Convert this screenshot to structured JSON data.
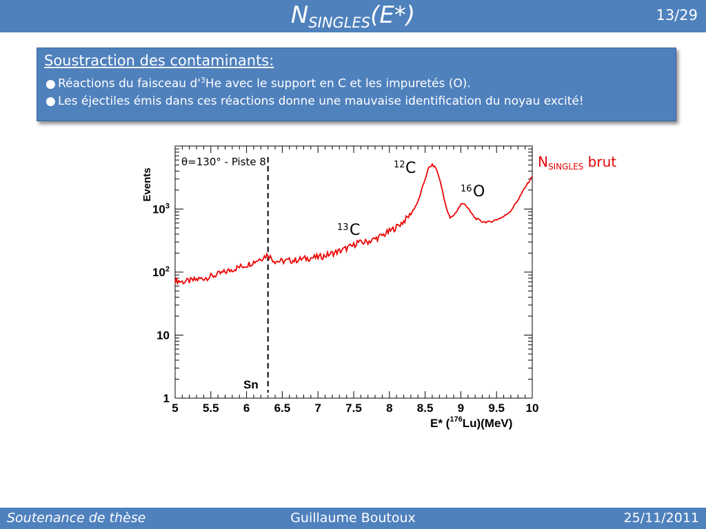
{
  "header": {
    "title_main": "N",
    "title_sub": "SINGLES",
    "title_tail": "(E*)",
    "page": "13/29"
  },
  "box": {
    "heading": "Soustraction des contaminants:",
    "bullet_char": "●",
    "b1_pre": "Réactions du faisceau d'",
    "b1_sup": "3",
    "b1_post": "He avec le support en C et les impuretés (O).",
    "b2": "Les éjectiles émis dans ces réactions donne une mauvaise identification du noyau excité!"
  },
  "chart_data": {
    "type": "line",
    "y_scale": "log",
    "xlim": [
      5,
      10
    ],
    "ylim": [
      1,
      10000
    ],
    "ylabel": "Events",
    "xlabel_pre": "E* (",
    "xlabel_sup": "176",
    "xlabel_post": "Lu)(MeV)",
    "x_ticks": [
      "5",
      "5.5",
      "6",
      "6.5",
      "7",
      "7.5",
      "8",
      "8.5",
      "9",
      "9.5",
      "10"
    ],
    "y_ticks": [
      {
        "base": "1",
        "exp": ""
      },
      {
        "base": "10",
        "exp": ""
      },
      {
        "base": "10",
        "exp": "2"
      },
      {
        "base": "10",
        "exp": "3"
      }
    ],
    "series": [
      {
        "color": "#ee0000",
        "x": [
          5.0,
          5.1,
          5.2,
          5.3,
          5.4,
          5.5,
          5.6,
          5.7,
          5.8,
          5.9,
          6.0,
          6.1,
          6.2,
          6.3,
          6.35,
          6.4,
          6.5,
          6.6,
          6.7,
          6.8,
          6.9,
          7.0,
          7.1,
          7.2,
          7.3,
          7.4,
          7.5,
          7.55,
          7.6,
          7.7,
          7.8,
          7.9,
          8.0,
          8.1,
          8.2,
          8.3,
          8.4,
          8.5,
          8.55,
          8.6,
          8.65,
          8.7,
          8.75,
          8.8,
          8.85,
          8.9,
          8.95,
          9.0,
          9.05,
          9.1,
          9.15,
          9.2,
          9.3,
          9.4,
          9.5,
          9.6,
          9.7,
          9.8,
          9.9,
          10.0
        ],
        "y": [
          75,
          70,
          72,
          76,
          80,
          85,
          92,
          100,
          110,
          120,
          130,
          145,
          165,
          190,
          165,
          150,
          148,
          152,
          155,
          162,
          168,
          172,
          182,
          198,
          215,
          238,
          265,
          300,
          290,
          305,
          335,
          380,
          440,
          520,
          640,
          830,
          1300,
          3000,
          4500,
          5000,
          4500,
          3100,
          1800,
          1000,
          720,
          800,
          950,
          1180,
          1240,
          1020,
          850,
          720,
          630,
          620,
          680,
          760,
          940,
          1400,
          2200,
          3300
        ]
      }
    ],
    "annotations": {
      "theta_label": "θ=130° - Piste 8",
      "sn_label": "Sn",
      "sn_x": 6.3,
      "c12_sup": "12",
      "c12_base": "C",
      "o16_sup": "16",
      "o16_base": "O",
      "c13_sup": "13",
      "c13_base": "C",
      "legend_main": "N",
      "legend_sub": "SINGLES",
      "legend_tail": " brut",
      "legend_color": "#e30000"
    }
  },
  "footer": {
    "left": "Soutenance de thèse",
    "center": "Guillaume Boutoux",
    "right": "25/11/2011"
  }
}
